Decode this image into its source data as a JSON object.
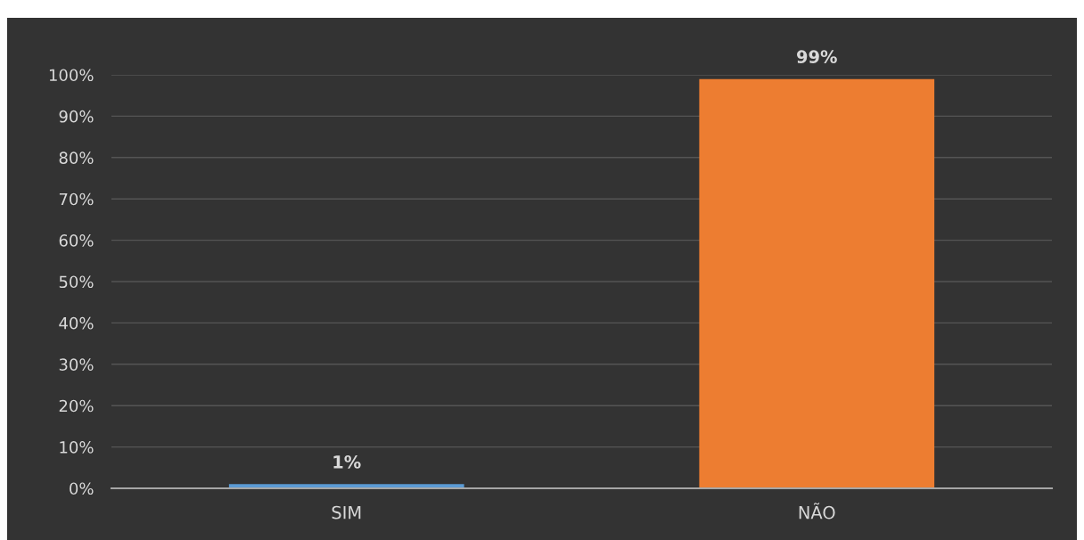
{
  "chart_data": {
    "type": "bar",
    "categories": [
      "SIM",
      "NÃO"
    ],
    "values": [
      1,
      99
    ],
    "colors": [
      "#5b9bd5",
      "#ed7d31"
    ],
    "ylim": [
      0,
      100
    ],
    "yticks": [
      {
        "value": 0,
        "label": "0%"
      },
      {
        "value": 10,
        "label": "10%"
      },
      {
        "value": 20,
        "label": "20%"
      },
      {
        "value": 30,
        "label": "30%"
      },
      {
        "value": 40,
        "label": "40%"
      },
      {
        "value": 50,
        "label": "50%"
      },
      {
        "value": 60,
        "label": "60%"
      },
      {
        "value": 70,
        "label": "70%"
      },
      {
        "value": 80,
        "label": "80%"
      },
      {
        "value": 90,
        "label": "90%"
      },
      {
        "value": 100,
        "label": "100%"
      }
    ],
    "value_labels": [
      "1%",
      "99%"
    ],
    "grid": "y",
    "legend": false
  }
}
